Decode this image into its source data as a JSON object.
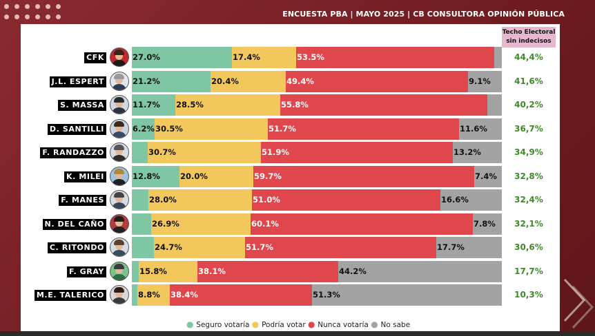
{
  "header": {
    "title": "ENCUESTA PBA | MAYO 2025 | CB CONSULTORA OPINIÓN PÚBLICA",
    "techo_line1": "Techo Electoral",
    "techo_line2": "sin indecisos"
  },
  "colors": {
    "seguro": "#7fc6a4",
    "podria": "#f2c75c",
    "nunca": "#e0474c",
    "nosabe": "#a3a3a3",
    "techo": "#3f8a2a",
    "accent": "#7a1f24"
  },
  "chart_data": {
    "type": "bar",
    "orientation": "horizontal-stacked",
    "xlim": [
      0,
      100
    ],
    "series_names": [
      "Seguro votaría",
      "Podría votar",
      "Nunca votaría",
      "No sabe"
    ],
    "rows": [
      {
        "name": "CFK",
        "values": [
          27.0,
          17.4,
          53.5,
          2.1
        ],
        "labels": [
          "27.0%",
          "17.4%",
          "53.5%",
          ""
        ],
        "techo": "44,4%"
      },
      {
        "name": "J.L. ESPERT",
        "values": [
          21.2,
          20.4,
          49.4,
          9.1
        ],
        "labels": [
          "21.2%",
          "20.4%",
          "49.4%",
          "9.1%"
        ],
        "techo": "41,6%"
      },
      {
        "name": "S. MASSA",
        "values": [
          11.7,
          28.5,
          55.8,
          4.0
        ],
        "labels": [
          "11.7%",
          "28.5%",
          "55.8%",
          ""
        ],
        "techo": "40,2%"
      },
      {
        "name": "D. SANTILLI",
        "values": [
          6.2,
          30.5,
          51.7,
          11.6
        ],
        "labels": [
          "6.2%",
          "30.5%",
          "51.7%",
          "11.6%"
        ],
        "techo": "36,7%"
      },
      {
        "name": "F. RANDAZZO",
        "values": [
          4.2,
          30.7,
          51.9,
          13.2
        ],
        "labels": [
          "",
          "30.7%",
          "51.9%",
          "13.2%"
        ],
        "techo": "34,9%"
      },
      {
        "name": "K. MILEI",
        "values": [
          12.8,
          20.0,
          59.7,
          7.4
        ],
        "labels": [
          "12.8%",
          "20.0%",
          "59.7%",
          "7.4%"
        ],
        "techo": "32,8%"
      },
      {
        "name": "F. MANES",
        "values": [
          4.4,
          28.0,
          51.0,
          16.6
        ],
        "labels": [
          "",
          "28.0%",
          "51.0%",
          "16.6%"
        ],
        "techo": "32,4%"
      },
      {
        "name": "N. DEL CAÑO",
        "values": [
          5.2,
          26.9,
          60.1,
          7.8
        ],
        "labels": [
          "",
          "26.9%",
          "60.1%",
          "7.8%"
        ],
        "techo": "32,1%"
      },
      {
        "name": "C. RITONDO",
        "values": [
          5.9,
          24.7,
          51.7,
          17.7
        ],
        "labels": [
          "",
          "24.7%",
          "51.7%",
          "17.7%"
        ],
        "techo": "30,6%"
      },
      {
        "name": "F. GRAY",
        "values": [
          1.9,
          15.8,
          38.1,
          44.2
        ],
        "labels": [
          "",
          "15.8%",
          "38.1%",
          "44.2%"
        ],
        "techo": "17,7%"
      },
      {
        "name": "M.E. TALERICO",
        "values": [
          1.5,
          8.8,
          38.4,
          51.3
        ],
        "labels": [
          "",
          "8.8%",
          "38.4%",
          "51.3%"
        ],
        "techo": "10,3%"
      }
    ],
    "legend": {
      "placement": "bottom",
      "entries": [
        "Seguro votaría",
        "Podría votar",
        "Nunca votaría",
        "No sabe"
      ]
    }
  }
}
